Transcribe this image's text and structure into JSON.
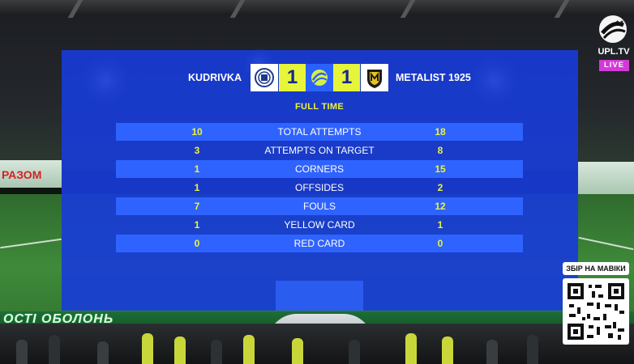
{
  "match": {
    "home_team": "KUDRIVKA",
    "away_team": "METALIST 1925",
    "home_score": "1",
    "away_score": "1",
    "status": "FULL TIME"
  },
  "stats": [
    {
      "home": "10",
      "label": "TOTAL ATTEMPTS",
      "away": "18"
    },
    {
      "home": "3",
      "label": "ATTEMPTS ON TARGET",
      "away": "8"
    },
    {
      "home": "1",
      "label": "CORNERS",
      "away": "15"
    },
    {
      "home": "1",
      "label": "OFFSIDES",
      "away": "2"
    },
    {
      "home": "7",
      "label": "FOULS",
      "away": "12"
    },
    {
      "home": "1",
      "label": "YELLOW CARD",
      "away": "1"
    },
    {
      "home": "0",
      "label": "RED CARD",
      "away": "0"
    }
  ],
  "broadcaster": {
    "logo_text": "UPL.TV",
    "live_label": "LIVE",
    "icon": "upl-ball-icon"
  },
  "qr": {
    "label": "ЗБІР НА МАВІКИ",
    "icon": "qr-code-icon"
  },
  "ads": {
    "bottom_board": "ОСТІ ОБОЛОНЬ",
    "left_board": "РАЗОМ"
  },
  "colors": {
    "panel": "#183cd6",
    "row_shade": "#2f63ff",
    "score_bg": "#e6f53a",
    "accent_yellow": "#eaf33b",
    "live": "#d23ad6"
  }
}
